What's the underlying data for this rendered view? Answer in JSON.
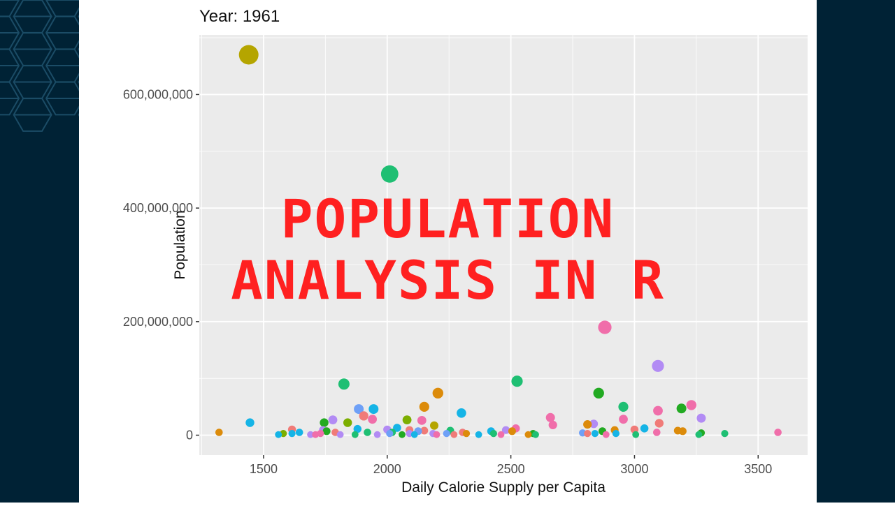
{
  "colors": {
    "panel_dark": "#002235",
    "pattern_line": "#1b4c66",
    "plot_bg": "#ebebeb",
    "grid": "#ffffff",
    "overlay_text": "#ff2020"
  },
  "overlay": {
    "line1": "POPULATION",
    "line2": "ANALYSIS IN R"
  },
  "chart_data": {
    "type": "scatter",
    "title": "Year: 1961",
    "xlabel": "Daily Calorie Supply per Capita",
    "ylabel": "Population",
    "xlim": [
      1240,
      3700
    ],
    "ylim": [
      -35000000,
      705000000
    ],
    "xticks": [
      1500,
      2000,
      2500,
      3000,
      3500
    ],
    "xtick_labels": [
      "1500",
      "2000",
      "2500",
      "3000",
      "3500"
    ],
    "yticks": [
      0,
      200000000,
      400000000,
      600000000
    ],
    "ytick_labels": [
      "0",
      "200,000,000",
      "400,000,000",
      "600,000,000"
    ],
    "grid": true,
    "legend": "none",
    "points": [
      {
        "x": 1440,
        "y": 670000000,
        "color": "#b5a500"
      },
      {
        "x": 2010,
        "y": 460000000,
        "color": "#1fbf73"
      },
      {
        "x": 2880,
        "y": 190000000,
        "color": "#f06eaa"
      },
      {
        "x": 3095,
        "y": 122000000,
        "color": "#b28bf4"
      },
      {
        "x": 2525,
        "y": 95000000,
        "color": "#1fbf73"
      },
      {
        "x": 1825,
        "y": 90000000,
        "color": "#1fbf73"
      },
      {
        "x": 2855,
        "y": 74000000,
        "color": "#22aa22"
      },
      {
        "x": 2205,
        "y": 74000000,
        "color": "#dc8b0a"
      },
      {
        "x": 3230,
        "y": 53000000,
        "color": "#f06eaa"
      },
      {
        "x": 2955,
        "y": 50000000,
        "color": "#1fbf73"
      },
      {
        "x": 2150,
        "y": 50000000,
        "color": "#dc8b0a"
      },
      {
        "x": 3190,
        "y": 47000000,
        "color": "#22aa22"
      },
      {
        "x": 1885,
        "y": 46000000,
        "color": "#6ea0f7"
      },
      {
        "x": 1945,
        "y": 46000000,
        "color": "#15b4e6"
      },
      {
        "x": 3095,
        "y": 43000000,
        "color": "#f06eaa"
      },
      {
        "x": 2300,
        "y": 39000000,
        "color": "#15b4e6"
      },
      {
        "x": 1905,
        "y": 34000000,
        "color": "#f07b78"
      },
      {
        "x": 2660,
        "y": 31000000,
        "color": "#f06eaa"
      },
      {
        "x": 3270,
        "y": 30000000,
        "color": "#b28bf4"
      },
      {
        "x": 1940,
        "y": 28000000,
        "color": "#f06eaa"
      },
      {
        "x": 2955,
        "y": 28000000,
        "color": "#f06eaa"
      },
      {
        "x": 1780,
        "y": 27000000,
        "color": "#b28bf4"
      },
      {
        "x": 2080,
        "y": 27000000,
        "color": "#7cae00"
      },
      {
        "x": 2140,
        "y": 26000000,
        "color": "#f06eaa"
      },
      {
        "x": 1445,
        "y": 22000000,
        "color": "#15b4e6"
      },
      {
        "x": 1745,
        "y": 22000000,
        "color": "#22aa22"
      },
      {
        "x": 1840,
        "y": 22000000,
        "color": "#7cae00"
      },
      {
        "x": 3100,
        "y": 21000000,
        "color": "#f07b78"
      },
      {
        "x": 2835,
        "y": 20000000,
        "color": "#b28bf4"
      },
      {
        "x": 2810,
        "y": 19000000,
        "color": "#dc8b0a"
      },
      {
        "x": 2670,
        "y": 18000000,
        "color": "#f06eaa"
      },
      {
        "x": 2190,
        "y": 17000000,
        "color": "#b5a500"
      },
      {
        "x": 2040,
        "y": 13000000,
        "color": "#15b4e6"
      },
      {
        "x": 2520,
        "y": 12000000,
        "color": "#f06eaa"
      },
      {
        "x": 3040,
        "y": 12000000,
        "color": "#15b4e6"
      },
      {
        "x": 1880,
        "y": 11000000,
        "color": "#15b4e6"
      },
      {
        "x": 1615,
        "y": 10000000,
        "color": "#f07b78"
      },
      {
        "x": 2000,
        "y": 10000000,
        "color": "#b28bf4"
      },
      {
        "x": 3000,
        "y": 10000000,
        "color": "#f07b78"
      },
      {
        "x": 2480,
        "y": 9000000,
        "color": "#b28bf4"
      },
      {
        "x": 2920,
        "y": 9000000,
        "color": "#dc8b0a"
      },
      {
        "x": 1740,
        "y": 9000000,
        "color": "#b28bf4"
      },
      {
        "x": 2090,
        "y": 9000000,
        "color": "#f07b78"
      },
      {
        "x": 2150,
        "y": 8000000,
        "color": "#f07b78"
      },
      {
        "x": 2255,
        "y": 8000000,
        "color": "#1fbf73"
      },
      {
        "x": 3175,
        "y": 8000000,
        "color": "#dc8b0a"
      },
      {
        "x": 1755,
        "y": 7000000,
        "color": "#22aa22"
      },
      {
        "x": 2125,
        "y": 7000000,
        "color": "#6ea0f7"
      },
      {
        "x": 2420,
        "y": 7000000,
        "color": "#15b4e6"
      },
      {
        "x": 2505,
        "y": 7000000,
        "color": "#dc8b0a"
      },
      {
        "x": 3195,
        "y": 7000000,
        "color": "#dc8b0a"
      },
      {
        "x": 2870,
        "y": 7000000,
        "color": "#22aa22"
      },
      {
        "x": 1320,
        "y": 5000000,
        "color": "#dc8b0a"
      },
      {
        "x": 1645,
        "y": 5000000,
        "color": "#15b4e6"
      },
      {
        "x": 1790,
        "y": 5000000,
        "color": "#f07b78"
      },
      {
        "x": 1920,
        "y": 5000000,
        "color": "#1fbf73"
      },
      {
        "x": 2305,
        "y": 5000000,
        "color": "#f07b78"
      },
      {
        "x": 2020,
        "y": 5000000,
        "color": "#1fbf73"
      },
      {
        "x": 3580,
        "y": 5000000,
        "color": "#f06eaa"
      },
      {
        "x": 3090,
        "y": 5000000,
        "color": "#f06eaa"
      },
      {
        "x": 3270,
        "y": 4000000,
        "color": "#22aa22"
      },
      {
        "x": 2790,
        "y": 4000000,
        "color": "#6ea0f7"
      },
      {
        "x": 1580,
        "y": 3000000,
        "color": "#7cae00"
      },
      {
        "x": 1615,
        "y": 3000000,
        "color": "#15b4e6"
      },
      {
        "x": 1730,
        "y": 3000000,
        "color": "#f06eaa"
      },
      {
        "x": 2010,
        "y": 3000000,
        "color": "#6ea0f7"
      },
      {
        "x": 2090,
        "y": 3000000,
        "color": "#b28bf4"
      },
      {
        "x": 2185,
        "y": 3000000,
        "color": "#b28bf4"
      },
      {
        "x": 2240,
        "y": 3000000,
        "color": "#6ea0f7"
      },
      {
        "x": 2320,
        "y": 3000000,
        "color": "#dc8b0a"
      },
      {
        "x": 2430,
        "y": 3000000,
        "color": "#1fbf73"
      },
      {
        "x": 2590,
        "y": 3000000,
        "color": "#22aa22"
      },
      {
        "x": 2810,
        "y": 3000000,
        "color": "#f07b78"
      },
      {
        "x": 2925,
        "y": 3000000,
        "color": "#15b4e6"
      },
      {
        "x": 3365,
        "y": 3000000,
        "color": "#1fbf73"
      },
      {
        "x": 2840,
        "y": 3000000,
        "color": "#15b4e6"
      },
      {
        "x": 1560,
        "y": 1000000,
        "color": "#15b4e6"
      },
      {
        "x": 1690,
        "y": 1000000,
        "color": "#b28bf4"
      },
      {
        "x": 1710,
        "y": 1000000,
        "color": "#f06eaa"
      },
      {
        "x": 1810,
        "y": 1000000,
        "color": "#b28bf4"
      },
      {
        "x": 1870,
        "y": 1000000,
        "color": "#1fbf73"
      },
      {
        "x": 1960,
        "y": 1000000,
        "color": "#b28bf4"
      },
      {
        "x": 2060,
        "y": 1000000,
        "color": "#22aa22"
      },
      {
        "x": 2110,
        "y": 1000000,
        "color": "#15b4e6"
      },
      {
        "x": 2200,
        "y": 1000000,
        "color": "#f06eaa"
      },
      {
        "x": 2270,
        "y": 1000000,
        "color": "#f07b78"
      },
      {
        "x": 2370,
        "y": 1000000,
        "color": "#15b4e6"
      },
      {
        "x": 2460,
        "y": 1000000,
        "color": "#f06eaa"
      },
      {
        "x": 2570,
        "y": 1000000,
        "color": "#dc8b0a"
      },
      {
        "x": 2600,
        "y": 1000000,
        "color": "#1fbf73"
      },
      {
        "x": 2885,
        "y": 1000000,
        "color": "#f06eaa"
      },
      {
        "x": 3005,
        "y": 1000000,
        "color": "#1fbf73"
      },
      {
        "x": 3260,
        "y": 1000000,
        "color": "#1fbf73"
      }
    ]
  }
}
